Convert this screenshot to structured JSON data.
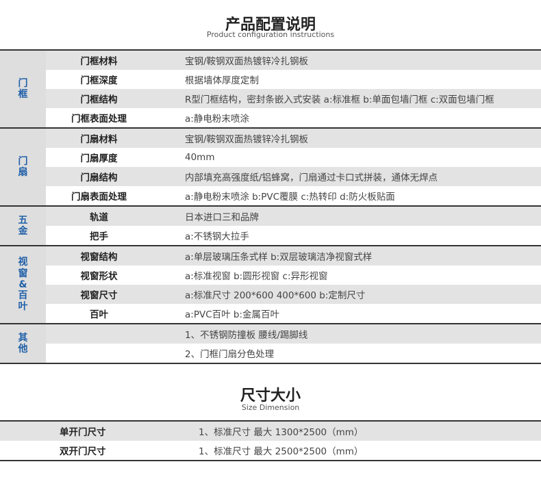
{
  "section1": {
    "title": "产品配置说明",
    "subtitle": "Product configuration instructions"
  },
  "groups": [
    {
      "name": "门框",
      "rows": [
        {
          "label": "门框材料",
          "value": "宝钢/鞍钢双面热镀锌冷扎钢板"
        },
        {
          "label": "门框深度",
          "value": "根据墙体厚度定制"
        },
        {
          "label": "门框结构",
          "value": "R型门框结构，密封条嵌入式安装   a:标准框   b:单面包墙门框   c:双面包墙门框"
        },
        {
          "label": "门框表面处理",
          "value": "a:静电粉末喷涂"
        }
      ]
    },
    {
      "name": "门扇",
      "rows": [
        {
          "label": "门扇材料",
          "value": "宝钢/鞍钢双面热镀锌冷扎钢板"
        },
        {
          "label": "门扇厚度",
          "value": "40mm"
        },
        {
          "label": "门扇结构",
          "value": "内部填充高强度纸/铝蜂窝，门扇通过卡口式拼装，通体无焊点"
        },
        {
          "label": "门扇表面处理",
          "value": "a:静电粉末喷涂   b:PVC覆膜   c:热转印   d:防火板贴面"
        }
      ]
    },
    {
      "name": "五金",
      "rows": [
        {
          "label": "轨道",
          "value": "日本进口三和品牌"
        },
        {
          "label": "把手",
          "value": "a:不锈钢大拉手"
        }
      ]
    },
    {
      "name": "视窗&百叶",
      "rows": [
        {
          "label": "视窗结构",
          "value": "a:单层玻璃压条式样   b:双层玻璃洁净视窗式样"
        },
        {
          "label": "视窗形状",
          "value": "a:标准视窗   b:圆形视窗   c:异形视窗"
        },
        {
          "label": "视窗尺寸",
          "value": "a:标准尺寸 200*600  400*600   b:定制尺寸"
        },
        {
          "label": "百叶",
          "value": "a:PVC百叶   b:金属百叶"
        }
      ]
    },
    {
      "name": "其他",
      "rows": [
        {
          "label": "",
          "value": "1、不锈钢防撞板 腰线/踢脚线"
        },
        {
          "label": "",
          "value": "2、门框门扇分色处理"
        }
      ]
    }
  ],
  "section2": {
    "title": "尺寸大小",
    "subtitle": "Size Dimension"
  },
  "sizes": [
    {
      "label": "单开门尺寸",
      "value": "1、标准尺寸 最大 1300*2500（mm）"
    },
    {
      "label": "双开门尺寸",
      "value": "1、标准尺寸 最大 2500*2500（mm）"
    }
  ],
  "colors": {
    "group_text": "#1f5fa8",
    "row_gray": "#e3e3e3",
    "divider": "#333333"
  }
}
